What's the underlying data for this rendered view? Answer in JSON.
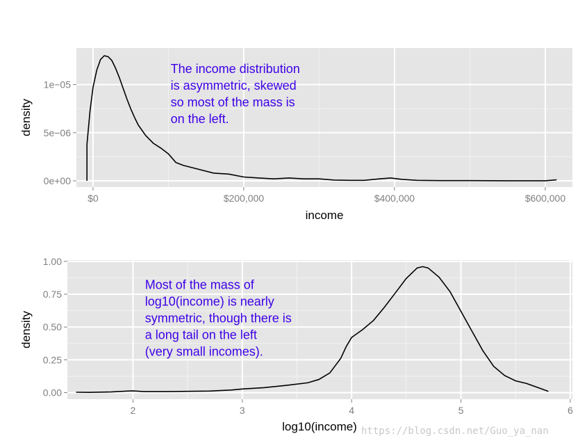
{
  "colors": {
    "panel": "#e5e5e5",
    "grid_major": "#ffffff",
    "grid_minor": "#f2f2f2",
    "line": "#000000",
    "annotation": "#3d00e6",
    "tick_label": "#7f7f7f"
  },
  "watermark": "https://blog.csdn.net/Guo_ya_nan",
  "chart_data": [
    {
      "type": "line",
      "title": "",
      "xlabel": "income",
      "ylabel": "density",
      "xlim": [
        -22000,
        636000
      ],
      "ylim": [
        -6.5e-07,
        1.38e-05
      ],
      "x_ticks": [
        0,
        200000,
        400000,
        600000
      ],
      "x_tick_labels": [
        "$0",
        "$200,000",
        "$400,000",
        "$600,000"
      ],
      "y_ticks": [
        0,
        5e-06,
        1e-05
      ],
      "y_tick_labels": [
        "0e+00",
        "5e−06",
        "1e−05"
      ],
      "annotation": "The income distribution\nis asymmetric, skewed\nso most of the mass is\non the left.",
      "annotation_anchor": {
        "x": 103000,
        "y": 1.12e-05
      },
      "grid": true,
      "series": [
        {
          "values": [
            [
              -8000,
              0
            ],
            [
              -8000,
              3.8e-06
            ],
            [
              -4000,
              7.2e-06
            ],
            [
              0,
              9.7e-06
            ],
            [
              5000,
              1.15e-05
            ],
            [
              10000,
              1.26e-05
            ],
            [
              15000,
              1.3e-05
            ],
            [
              20000,
              1.29e-05
            ],
            [
              25000,
              1.25e-05
            ],
            [
              30000,
              1.17e-05
            ],
            [
              35000,
              1.07e-05
            ],
            [
              40000,
              9.6e-06
            ],
            [
              45000,
              8.5e-06
            ],
            [
              50000,
              7.5e-06
            ],
            [
              55000,
              6.6e-06
            ],
            [
              60000,
              5.8e-06
            ],
            [
              70000,
              4.7e-06
            ],
            [
              80000,
              3.9e-06
            ],
            [
              90000,
              3.4e-06
            ],
            [
              100000,
              2.8e-06
            ],
            [
              110000,
              1.9e-06
            ],
            [
              120000,
              1.6e-06
            ],
            [
              140000,
              1.2e-06
            ],
            [
              160000,
              8e-07
            ],
            [
              180000,
              7e-07
            ],
            [
              200000,
              4e-07
            ],
            [
              220000,
              3e-07
            ],
            [
              240000,
              2e-07
            ],
            [
              260000,
              3e-07
            ],
            [
              280000,
              2e-07
            ],
            [
              300000,
              2e-07
            ],
            [
              320000,
              8e-08
            ],
            [
              340000,
              5e-08
            ],
            [
              360000,
              5e-08
            ],
            [
              380000,
              2e-07
            ],
            [
              395000,
              3e-07
            ],
            [
              410000,
              1.5e-07
            ],
            [
              430000,
              5e-08
            ],
            [
              460000,
              2e-08
            ],
            [
              500000,
              2e-08
            ],
            [
              550000,
              1e-08
            ],
            [
              600000,
              1e-08
            ],
            [
              615000,
              1e-07
            ]
          ]
        }
      ]
    },
    {
      "type": "line",
      "title": "",
      "xlabel": "log10(income)",
      "ylabel": "density",
      "xlim": [
        1.4,
        6.02
      ],
      "ylim": [
        -0.05,
        1.01
      ],
      "x_ticks": [
        2,
        3,
        4,
        5,
        6
      ],
      "x_tick_labels": [
        "2",
        "3",
        "4",
        "5",
        "6"
      ],
      "y_ticks": [
        0,
        0.25,
        0.5,
        0.75,
        1
      ],
      "y_tick_labels": [
        "0.00",
        "0.25",
        "0.50",
        "0.75",
        "1.00"
      ],
      "annotation": "Most of the mass of\nlog10(income) is nearly\nsymmetric, though there is\na long tail on the left\n(very small incomes).",
      "annotation_anchor": {
        "x": 2.11,
        "y": 0.79
      },
      "grid": true,
      "series": [
        {
          "values": [
            [
              1.48,
              0.003
            ],
            [
              1.6,
              0.002
            ],
            [
              1.8,
              0.005
            ],
            [
              1.95,
              0.012
            ],
            [
              2.0,
              0.013
            ],
            [
              2.1,
              0.008
            ],
            [
              2.3,
              0.008
            ],
            [
              2.5,
              0.01
            ],
            [
              2.7,
              0.012
            ],
            [
              2.9,
              0.02
            ],
            [
              3.0,
              0.028
            ],
            [
              3.2,
              0.038
            ],
            [
              3.4,
              0.055
            ],
            [
              3.6,
              0.075
            ],
            [
              3.7,
              0.1
            ],
            [
              3.8,
              0.15
            ],
            [
              3.9,
              0.26
            ],
            [
              3.95,
              0.35
            ],
            [
              4.0,
              0.42
            ],
            [
              4.1,
              0.48
            ],
            [
              4.2,
              0.55
            ],
            [
              4.3,
              0.65
            ],
            [
              4.4,
              0.76
            ],
            [
              4.5,
              0.87
            ],
            [
              4.6,
              0.95
            ],
            [
              4.65,
              0.96
            ],
            [
              4.7,
              0.95
            ],
            [
              4.8,
              0.88
            ],
            [
              4.9,
              0.77
            ],
            [
              5.0,
              0.62
            ],
            [
              5.1,
              0.47
            ],
            [
              5.2,
              0.32
            ],
            [
              5.3,
              0.2
            ],
            [
              5.4,
              0.13
            ],
            [
              5.5,
              0.09
            ],
            [
              5.6,
              0.07
            ],
            [
              5.7,
              0.04
            ],
            [
              5.8,
              0.01
            ]
          ]
        }
      ]
    }
  ]
}
